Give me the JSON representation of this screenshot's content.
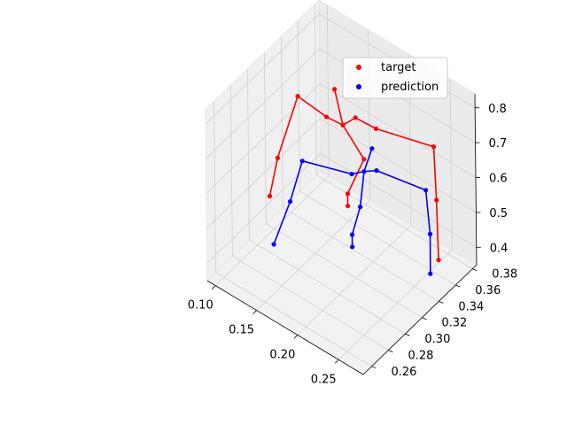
{
  "chart_data": {
    "type": "scatter",
    "projection": "3d",
    "grid": true,
    "legend_placement": "top-right",
    "legend": [
      {
        "name": "target",
        "color": "#ff0000"
      },
      {
        "name": "prediction",
        "color": "#0000ff"
      }
    ],
    "x_ticks": [
      "0.10",
      "0.15",
      "0.20",
      "0.25"
    ],
    "y_ticks": [
      "0.26",
      "0.28",
      "0.30",
      "0.32",
      "0.34",
      "0.36",
      "0.38"
    ],
    "z_ticks": [
      "0.4",
      "0.5",
      "0.6",
      "0.7",
      "0.8"
    ],
    "xlim": [
      0.09,
      0.28
    ],
    "ylim": [
      0.25,
      0.385
    ],
    "zlim": [
      0.35,
      0.84
    ],
    "series": [
      {
        "name": "target",
        "color": "#ff0000",
        "points": [
          {
            "x": 0.175,
            "y": 0.33,
            "z": 0.73
          },
          {
            "x": 0.18,
            "y": 0.34,
            "z": 0.735
          },
          {
            "x": 0.155,
            "y": 0.33,
            "z": 0.725
          },
          {
            "x": 0.12,
            "y": 0.33,
            "z": 0.735
          },
          {
            "x": 0.105,
            "y": 0.32,
            "z": 0.56
          },
          {
            "x": 0.1,
            "y": 0.315,
            "z": 0.455
          },
          {
            "x": 0.2,
            "y": 0.345,
            "z": 0.72
          },
          {
            "x": 0.26,
            "y": 0.355,
            "z": 0.73
          },
          {
            "x": 0.268,
            "y": 0.35,
            "z": 0.6
          },
          {
            "x": 0.275,
            "y": 0.345,
            "z": 0.45
          },
          {
            "x": 0.16,
            "y": 0.335,
            "z": 0.8
          },
          {
            "x": 0.19,
            "y": 0.34,
            "z": 0.63
          },
          {
            "x": 0.18,
            "y": 0.33,
            "z": 0.54
          },
          {
            "x": 0.18,
            "y": 0.33,
            "z": 0.505
          }
        ],
        "edges": [
          [
            0,
            1
          ],
          [
            0,
            2
          ],
          [
            2,
            3
          ],
          [
            3,
            4
          ],
          [
            4,
            5
          ],
          [
            1,
            6
          ],
          [
            6,
            7
          ],
          [
            7,
            8
          ],
          [
            8,
            9
          ],
          [
            0,
            10
          ],
          [
            0,
            11
          ],
          [
            11,
            12
          ],
          [
            12,
            13
          ]
        ]
      },
      {
        "name": "prediction",
        "color": "#0000ff",
        "points": [
          {
            "x": 0.19,
            "y": 0.34,
            "z": 0.595
          },
          {
            "x": 0.18,
            "y": 0.335,
            "z": 0.585
          },
          {
            "x": 0.2,
            "y": 0.345,
            "z": 0.6
          },
          {
            "x": 0.13,
            "y": 0.325,
            "z": 0.575
          },
          {
            "x": 0.125,
            "y": 0.315,
            "z": 0.475
          },
          {
            "x": 0.12,
            "y": 0.3,
            "z": 0.38
          },
          {
            "x": 0.255,
            "y": 0.35,
            "z": 0.61
          },
          {
            "x": 0.265,
            "y": 0.345,
            "z": 0.51
          },
          {
            "x": 0.27,
            "y": 0.34,
            "z": 0.415
          },
          {
            "x": 0.2,
            "y": 0.34,
            "z": 0.675
          },
          {
            "x": 0.19,
            "y": 0.335,
            "z": 0.505
          },
          {
            "x": 0.185,
            "y": 0.33,
            "z": 0.43
          },
          {
            "x": 0.185,
            "y": 0.33,
            "z": 0.395
          }
        ],
        "edges": [
          [
            0,
            1
          ],
          [
            0,
            2
          ],
          [
            1,
            3
          ],
          [
            3,
            4
          ],
          [
            4,
            5
          ],
          [
            2,
            6
          ],
          [
            6,
            7
          ],
          [
            7,
            8
          ],
          [
            0,
            9
          ],
          [
            0,
            10
          ],
          [
            10,
            11
          ],
          [
            11,
            12
          ]
        ]
      }
    ]
  }
}
